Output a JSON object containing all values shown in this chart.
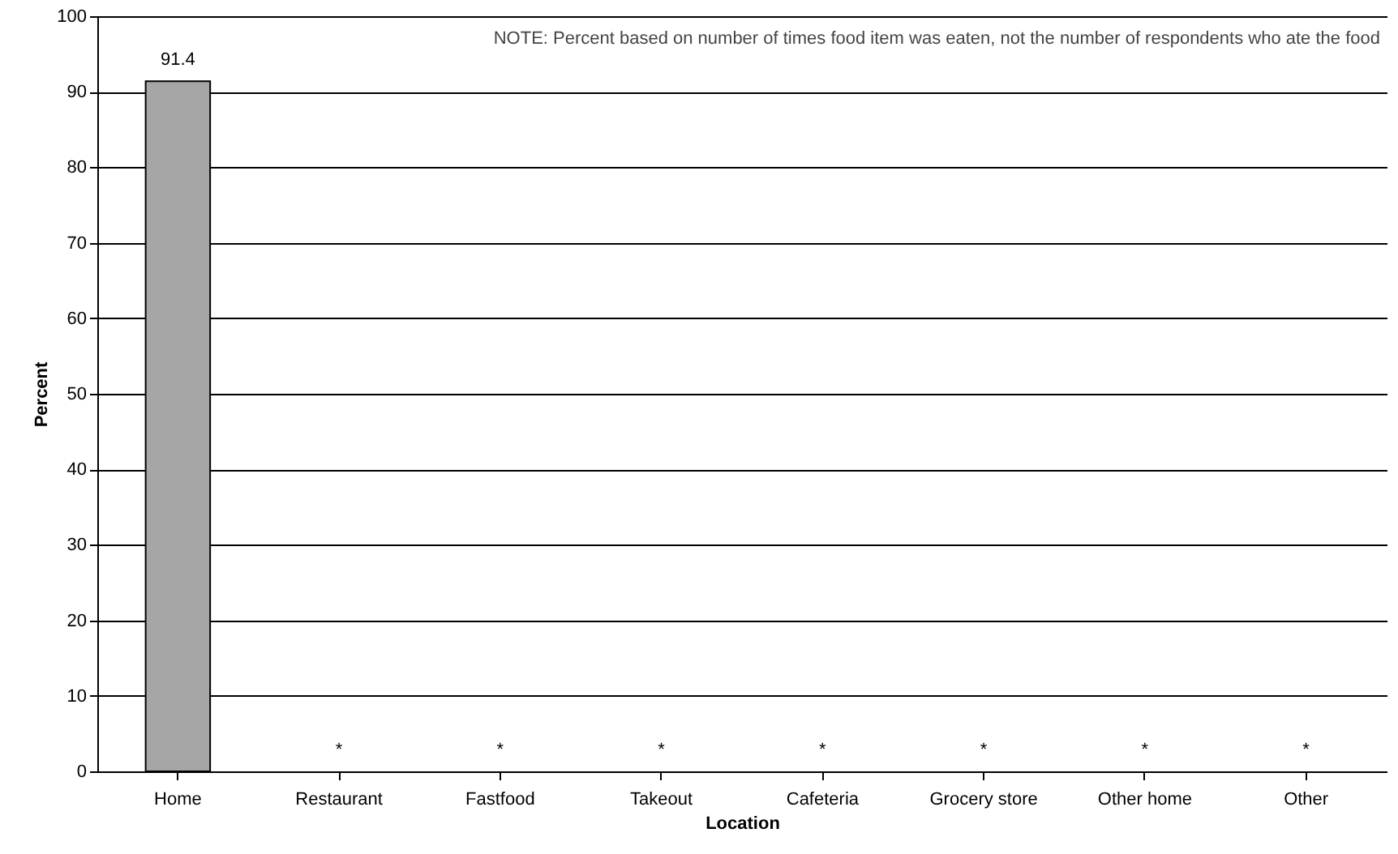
{
  "chart_data": {
    "type": "bar",
    "xlabel": "Location",
    "ylabel": "Percent",
    "categories": [
      "Home",
      "Restaurant",
      "Fastfood",
      "Takeout",
      "Cafeteria",
      "Grocery store",
      "Other home",
      "Other"
    ],
    "values": [
      91.4,
      null,
      null,
      null,
      null,
      null,
      null,
      null
    ],
    "value_labels": [
      "91.4",
      "*",
      "*",
      "*",
      "*",
      "*",
      "*",
      "*"
    ],
    "color": "#a6a6a6",
    "ylim": [
      0,
      100
    ],
    "yticks": [
      0,
      10,
      20,
      30,
      40,
      50,
      60,
      70,
      80,
      90,
      100
    ],
    "grid": "y",
    "annotations": [
      "NOTE: Percent based on number of times food item was eaten, not the number of respondents who ate the food"
    ]
  }
}
